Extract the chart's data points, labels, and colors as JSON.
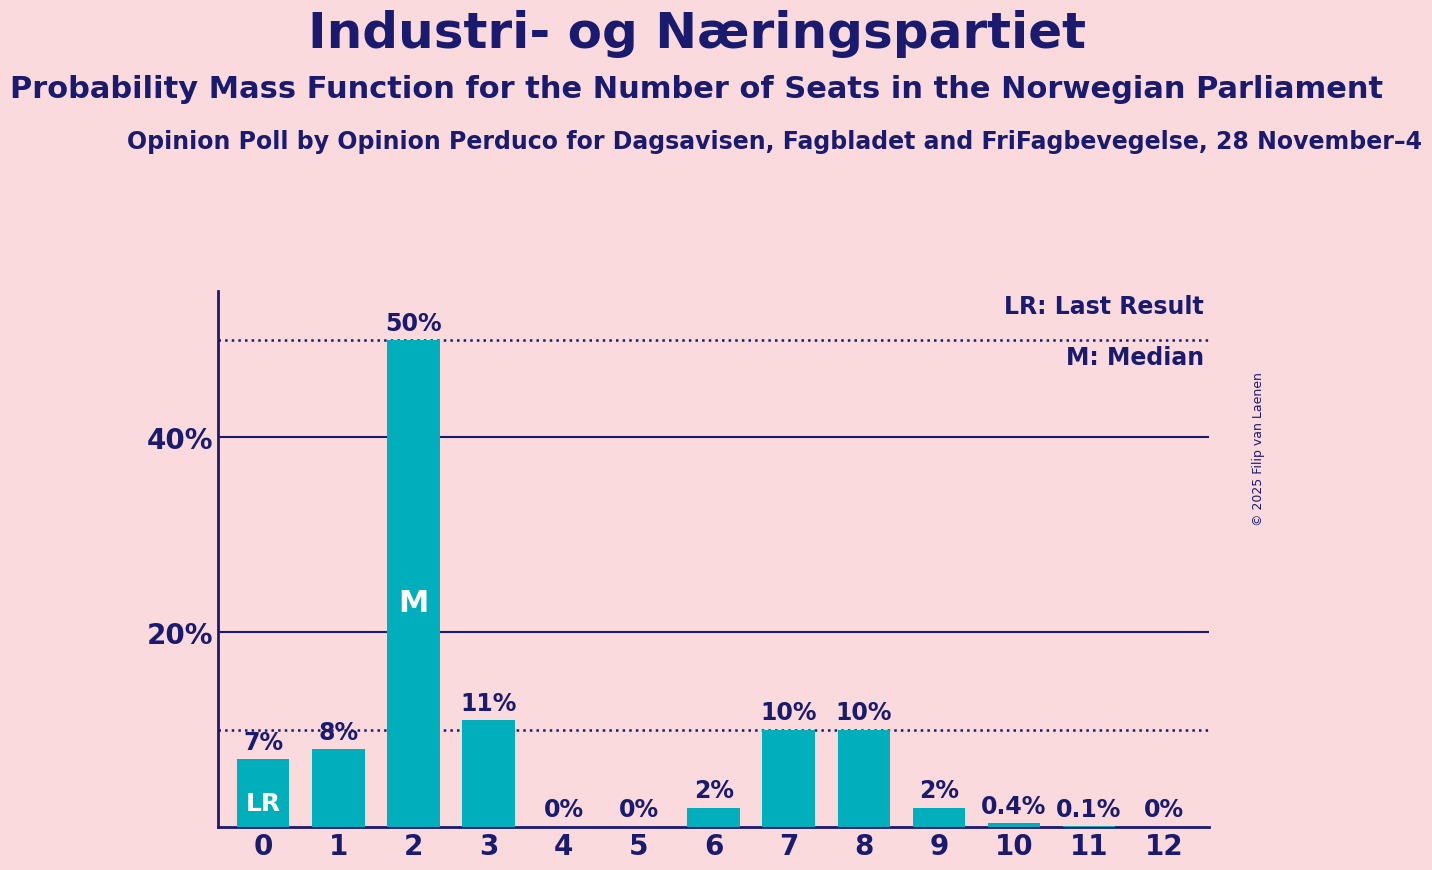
{
  "title": "Industri- og Næringspartiet",
  "subtitle": "Probability Mass Function for the Number of Seats in the Norwegian Parliament",
  "source_line": "Opinion Poll by Opinion Perduco for Dagsavisen, Fagbladet and FriFagbevegelse, 28 November–4",
  "copyright": "© 2025 Filip van Laenen",
  "categories": [
    0,
    1,
    2,
    3,
    4,
    5,
    6,
    7,
    8,
    9,
    10,
    11,
    12
  ],
  "values": [
    7,
    8,
    50,
    11,
    0,
    0,
    2,
    10,
    10,
    2,
    0.4,
    0.1,
    0
  ],
  "bar_labels": [
    "7%",
    "8%",
    "50%",
    "11%",
    "0%",
    "0%",
    "2%",
    "10%",
    "10%",
    "2%",
    "0.4%",
    "0.1%",
    "0%"
  ],
  "bar_color": "#00AFBB",
  "background_color": "#FADADD",
  "axis_color": "#1a1a6e",
  "text_color": "#1a1a6e",
  "bar_label_color_inside": "#ffffff",
  "lr_bar_index": 0,
  "median_bar_index": 2,
  "ylim": [
    0,
    55
  ],
  "yticks": [
    20,
    40
  ],
  "dotted_line_values": [
    50,
    10
  ],
  "solid_line_values": [
    20,
    40
  ],
  "legend_lr": "LR: Last Result",
  "legend_m": "M: Median",
  "xlabel_fontsize": 20,
  "ylabel_fontsize": 20,
  "title_fontsize": 36,
  "subtitle_fontsize": 22,
  "source_fontsize": 17,
  "legend_fontsize": 17,
  "bar_label_fontsize": 17,
  "inside_label_fontsize": 22
}
